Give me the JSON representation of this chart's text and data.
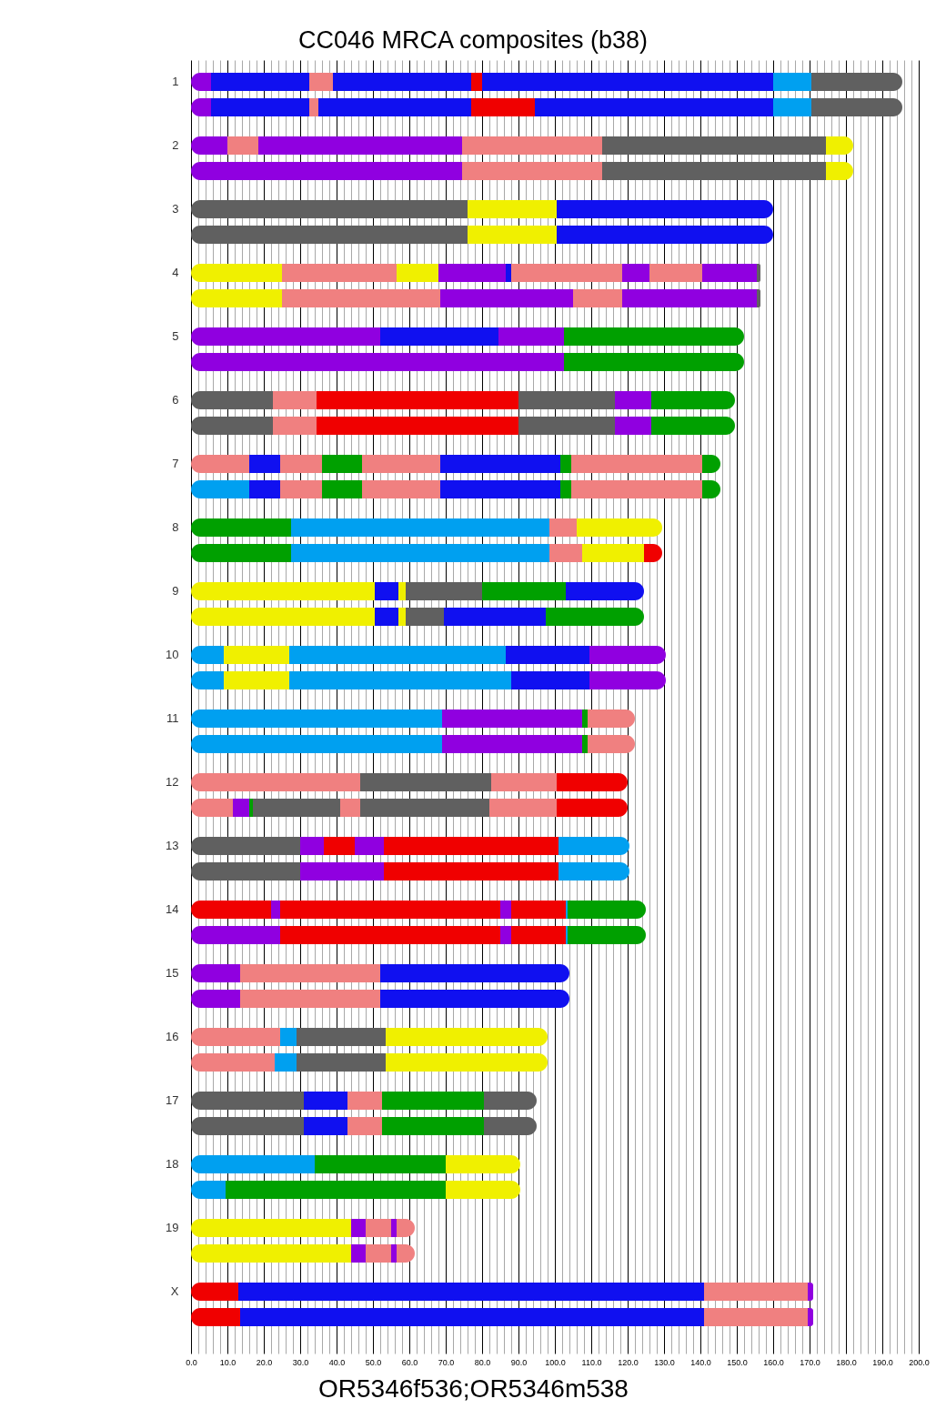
{
  "chart_data": {
    "type": "bar",
    "orientation": "horizontal",
    "stacked": true,
    "title": "CC046 MRCA composites (b38)",
    "xlabel": "OR5346f536;OR5346m538",
    "categories": [
      "1",
      null,
      "2",
      null,
      "3",
      null,
      "4",
      null,
      "5",
      null,
      "6",
      null,
      "7",
      null,
      "8",
      null,
      "9",
      null,
      "10",
      null,
      "11",
      null,
      "12",
      null,
      "13",
      null,
      "14",
      null,
      "15",
      null,
      "16",
      null,
      "17",
      null,
      "18",
      null,
      "19",
      null,
      "X",
      null
    ],
    "xlim": [
      0,
      200
    ],
    "xticks": [
      {
        "value": 0,
        "label": "0.0"
      },
      {
        "value": 2,
        "label": null
      },
      {
        "value": 4,
        "label": null
      },
      {
        "value": 6,
        "label": null
      },
      {
        "value": 8,
        "label": null
      },
      {
        "value": 10,
        "label": "10.0"
      },
      {
        "value": 12,
        "label": null
      },
      {
        "value": 14,
        "label": null
      },
      {
        "value": 16,
        "label": null
      },
      {
        "value": 18,
        "label": null
      },
      {
        "value": 20,
        "label": "20.0"
      },
      {
        "value": 22,
        "label": null
      },
      {
        "value": 24,
        "label": null
      },
      {
        "value": 26,
        "label": null
      },
      {
        "value": 28,
        "label": null
      },
      {
        "value": 30,
        "label": "30.0"
      },
      {
        "value": 32,
        "label": null
      },
      {
        "value": 34,
        "label": null
      },
      {
        "value": 36,
        "label": null
      },
      {
        "value": 38,
        "label": null
      },
      {
        "value": 40,
        "label": "40.0"
      },
      {
        "value": 42,
        "label": null
      },
      {
        "value": 44,
        "label": null
      },
      {
        "value": 46,
        "label": null
      },
      {
        "value": 48,
        "label": null
      },
      {
        "value": 50,
        "label": "50.0"
      },
      {
        "value": 52,
        "label": null
      },
      {
        "value": 54,
        "label": null
      },
      {
        "value": 56,
        "label": null
      },
      {
        "value": 58,
        "label": null
      },
      {
        "value": 60,
        "label": "60.0"
      },
      {
        "value": 62,
        "label": null
      },
      {
        "value": 64,
        "label": null
      },
      {
        "value": 66,
        "label": null
      },
      {
        "value": 68,
        "label": null
      },
      {
        "value": 70,
        "label": "70.0"
      },
      {
        "value": 72,
        "label": null
      },
      {
        "value": 74,
        "label": null
      },
      {
        "value": 76,
        "label": null
      },
      {
        "value": 78,
        "label": null
      },
      {
        "value": 80,
        "label": "80.0"
      },
      {
        "value": 82,
        "label": null
      },
      {
        "value": 84,
        "label": null
      },
      {
        "value": 86,
        "label": null
      },
      {
        "value": 88,
        "label": null
      },
      {
        "value": 90,
        "label": "90.0"
      },
      {
        "value": 92,
        "label": null
      },
      {
        "value": 94,
        "label": null
      },
      {
        "value": 96,
        "label": null
      },
      {
        "value": 98,
        "label": null
      },
      {
        "value": 100,
        "label": "100.0"
      },
      {
        "value": 102,
        "label": null
      },
      {
        "value": 104,
        "label": null
      },
      {
        "value": 106,
        "label": null
      },
      {
        "value": 108,
        "label": null
      },
      {
        "value": 110,
        "label": "110.0"
      },
      {
        "value": 112,
        "label": null
      },
      {
        "value": 114,
        "label": null
      },
      {
        "value": 116,
        "label": null
      },
      {
        "value": 118,
        "label": null
      },
      {
        "value": 120,
        "label": "120.0"
      },
      {
        "value": 122,
        "label": null
      },
      {
        "value": 124,
        "label": null
      },
      {
        "value": 126,
        "label": null
      },
      {
        "value": 128,
        "label": null
      },
      {
        "value": 130,
        "label": "130.0"
      },
      {
        "value": 132,
        "label": null
      },
      {
        "value": 134,
        "label": null
      },
      {
        "value": 136,
        "label": null
      },
      {
        "value": 138,
        "label": null
      },
      {
        "value": 140,
        "label": "140.0"
      },
      {
        "value": 142,
        "label": null
      },
      {
        "value": 144,
        "label": null
      },
      {
        "value": 146,
        "label": null
      },
      {
        "value": 148,
        "label": null
      },
      {
        "value": 150,
        "label": "150.0"
      },
      {
        "value": 152,
        "label": null
      },
      {
        "value": 154,
        "label": null
      },
      {
        "value": 156,
        "label": null
      },
      {
        "value": 158,
        "label": null
      },
      {
        "value": 160,
        "label": "160.0"
      },
      {
        "value": 162,
        "label": null
      },
      {
        "value": 164,
        "label": null
      },
      {
        "value": 166,
        "label": null
      },
      {
        "value": 168,
        "label": null
      },
      {
        "value": 170,
        "label": "170.0"
      },
      {
        "value": 172,
        "label": null
      },
      {
        "value": 174,
        "label": null
      },
      {
        "value": 176,
        "label": null
      },
      {
        "value": 178,
        "label": null
      },
      {
        "value": 180,
        "label": "180.0"
      },
      {
        "value": 182,
        "label": null
      },
      {
        "value": 184,
        "label": null
      },
      {
        "value": 186,
        "label": null
      },
      {
        "value": 188,
        "label": null
      },
      {
        "value": 190,
        "label": "190.0"
      },
      {
        "value": 192,
        "label": null
      },
      {
        "value": 194,
        "label": null
      },
      {
        "value": 196,
        "label": null
      },
      {
        "value": 198,
        "label": null
      },
      {
        "value": 200,
        "label": "200.0"
      }
    ],
    "grid": "x",
    "series": [
      {
        "values": [
          5.5,
          5.5,
          10,
          74.5,
          76,
          76,
          25,
          25,
          52,
          102.5,
          22.5,
          22.5,
          16,
          16,
          27.5,
          27.5,
          50.5,
          50.5,
          9,
          9,
          69,
          69,
          46.5,
          11.5,
          30,
          30,
          22,
          24.5,
          13.5,
          13.5,
          24.5,
          23,
          31,
          31,
          34,
          9.5,
          44,
          44,
          13,
          13.5
        ],
        "colors": [
          "#9000e0",
          "#9000e0",
          "#9000e0",
          "#9000e0",
          "#606060",
          "#606060",
          "#f0f000",
          "#f0f000",
          "#9000e0",
          "#9000e0",
          "#606060",
          "#606060",
          "#f08080",
          "#00a0f0",
          "#00a000",
          "#00a000",
          "#f0f000",
          "#f0f000",
          "#00a0f0",
          "#00a0f0",
          "#00a0f0",
          "#00a0f0",
          "#f08080",
          "#f08080",
          "#606060",
          "#606060",
          "#f00000",
          "#9000e0",
          "#9000e0",
          "#9000e0",
          "#f08080",
          "#f08080",
          "#606060",
          "#606060",
          "#00a0f0",
          "#00a0f0",
          "#f0f000",
          "#f0f000",
          "#f00000",
          "#f00000"
        ]
      },
      {
        "values": [
          27,
          27,
          8.5,
          38.5,
          24.5,
          24.5,
          31.5,
          43.5,
          32.5,
          49.5,
          12,
          12,
          8.5,
          8.5,
          71,
          71,
          6.5,
          6.5,
          18,
          18,
          38.5,
          38.5,
          36,
          4.5,
          6.5,
          23,
          2.5,
          60.5,
          38.5,
          38.5,
          4.5,
          6,
          12,
          12,
          36,
          60.5,
          4,
          4,
          128,
          127.5
        ],
        "colors": [
          "#1010f0",
          "#1010f0",
          "#f08080",
          "#f08080",
          "#f0f000",
          "#f0f000",
          "#f08080",
          "#f08080",
          "#1010f0",
          "#00a000",
          "#f08080",
          "#f08080",
          "#1010f0",
          "#1010f0",
          "#00a0f0",
          "#00a0f0",
          "#1010f0",
          "#1010f0",
          "#f0f000",
          "#f0f000",
          "#9000e0",
          "#9000e0",
          "#606060",
          "#9000e0",
          "#9000e0",
          "#9000e0",
          "#9000e0",
          "#f00000",
          "#f08080",
          "#f08080",
          "#00a0f0",
          "#00a0f0",
          "#1010f0",
          "#1010f0",
          "#00a000",
          "#00a000",
          "#9000e0",
          "#9000e0",
          "#1010f0",
          "#1010f0"
        ]
      },
      {
        "values": [
          6.5,
          2.5,
          56,
          61.5,
          59.5,
          59.5,
          11.5,
          36.5,
          18,
          null,
          55.5,
          55.5,
          11.5,
          11.5,
          7.5,
          9,
          2,
          2,
          59.5,
          61,
          1.5,
          1.5,
          18,
          1,
          8.5,
          48,
          60.5,
          3,
          52,
          52,
          24.5,
          24.5,
          9.5,
          9.5,
          20.5,
          20.5,
          7,
          7,
          28.5,
          28.5
        ],
        "colors": [
          "#f08080",
          "#f08080",
          "#9000e0",
          "#606060",
          "#1010f0",
          "#1010f0",
          "#f0f000",
          "#9000e0",
          "#9000e0",
          null,
          "#f00000",
          "#f00000",
          "#f08080",
          "#f08080",
          "#f08080",
          "#f08080",
          "#f0f000",
          "#f0f000",
          "#00a0f0",
          "#00a0f0",
          "#00a000",
          "#00a000",
          "#f08080",
          "#00a000",
          "#f00000",
          "#f00000",
          "#f00000",
          "#9000e0",
          "#1010f0",
          "#1010f0",
          "#606060",
          "#606060",
          "#f08080",
          "#f08080",
          "#f0f000",
          "#f0f000",
          "#f08080",
          "#f08080",
          "#f08080",
          "#f08080"
        ]
      },
      {
        "values": [
          38,
          42,
          38.5,
          7.5,
          null,
          null,
          18.5,
          13.5,
          49.5,
          null,
          26.5,
          26.5,
          11,
          11,
          23.5,
          17,
          21,
          10.5,
          23,
          21.5,
          13,
          13,
          19.5,
          24,
          8,
          19.5,
          3,
          15,
          null,
          null,
          44.5,
          44.5,
          28,
          28,
          null,
          null,
          1.5,
          1.5,
          1.5,
          1.5
        ],
        "colors": [
          "#1010f0",
          "#1010f0",
          "#f08080",
          "#f0f000",
          null,
          null,
          "#9000e0",
          "#f08080",
          "#00a000",
          null,
          "#606060",
          "#606060",
          "#00a000",
          "#00a000",
          "#f0f000",
          "#f0f000",
          "#606060",
          "#606060",
          "#1010f0",
          "#1010f0",
          "#f08080",
          "#f08080",
          "#f00000",
          "#606060",
          "#9000e0",
          "#00a0f0",
          "#9000e0",
          "#f00000",
          null,
          null,
          "#f0f000",
          "#f0f000",
          "#00a000",
          "#00a000",
          null,
          null,
          "#9000e0",
          "#9000e0",
          "#9000e0",
          "#9000e0"
        ]
      },
      {
        "values": [
          3,
          17.5,
          61.5,
          null,
          null,
          null,
          1.5,
          37,
          null,
          null,
          10,
          10,
          21.5,
          21.5,
          null,
          5,
          23,
          28,
          21,
          21,
          null,
          null,
          null,
          5.5,
          48,
          null,
          15,
          0.5,
          null,
          null,
          null,
          null,
          14.5,
          14.5,
          null,
          null,
          5,
          5,
          null,
          null
        ],
        "colors": [
          "#f00000",
          "#f00000",
          "#606060",
          null,
          null,
          null,
          "#1010f0",
          "#9000e0",
          null,
          null,
          "#9000e0",
          "#9000e0",
          "#f08080",
          "#f08080",
          null,
          "#f00000",
          "#00a000",
          "#1010f0",
          "#9000e0",
          "#9000e0",
          null,
          null,
          null,
          "#f08080",
          "#f00000",
          null,
          "#f00000",
          "#00a0f0",
          null,
          null,
          null,
          null,
          "#606060",
          "#606060",
          null,
          null,
          "#f08080",
          "#f08080",
          null,
          null
        ]
      },
      {
        "values": [
          80,
          65.5,
          7.5,
          null,
          null,
          null,
          30.5,
          1,
          null,
          null,
          23,
          23,
          33,
          33,
          null,
          null,
          21.5,
          27,
          null,
          null,
          null,
          null,
          null,
          35.5,
          19.5,
          null,
          0.5,
          21.5,
          null,
          null,
          null,
          null,
          null,
          null,
          null,
          null,
          null,
          null,
          null,
          null
        ],
        "colors": [
          "#1010f0",
          "#1010f0",
          "#f0f000",
          null,
          null,
          null,
          "#f08080",
          "#606060",
          null,
          null,
          "#00a000",
          "#00a000",
          "#1010f0",
          "#1010f0",
          null,
          null,
          "#1010f0",
          "#00a000",
          null,
          null,
          null,
          null,
          null,
          "#606060",
          "#00a0f0",
          null,
          "#00a0f0",
          "#00a000",
          null,
          null,
          null,
          null,
          null,
          null,
          null,
          null,
          null,
          null,
          null,
          null
        ]
      },
      {
        "values": [
          10.5,
          10.5,
          null,
          null,
          null,
          null,
          7.5,
          null,
          null,
          null,
          null,
          null,
          3,
          3,
          null,
          null,
          null,
          null,
          null,
          null,
          null,
          null,
          null,
          18.5,
          null,
          null,
          21.5,
          null,
          null,
          null,
          null,
          null,
          null,
          null,
          null,
          null,
          null,
          null,
          null,
          null
        ],
        "colors": [
          "#00a0f0",
          "#00a0f0",
          null,
          null,
          null,
          null,
          "#9000e0",
          null,
          null,
          null,
          null,
          null,
          "#00a000",
          "#00a000",
          null,
          null,
          null,
          null,
          null,
          null,
          null,
          null,
          null,
          "#f08080",
          null,
          null,
          "#00a000",
          null,
          null,
          null,
          null,
          null,
          null,
          null,
          null,
          null,
          null,
          null,
          null,
          null
        ]
      },
      {
        "values": [
          25,
          25,
          null,
          null,
          null,
          null,
          14.5,
          null,
          null,
          null,
          null,
          null,
          36,
          36,
          null,
          null,
          null,
          null,
          null,
          null,
          null,
          null,
          null,
          19.5,
          null,
          null,
          null,
          null,
          null,
          null,
          null,
          null,
          null,
          null,
          null,
          null,
          null,
          null,
          null,
          null
        ],
        "colors": [
          "#606060",
          "#606060",
          null,
          null,
          null,
          null,
          "#f08080",
          null,
          null,
          null,
          null,
          null,
          "#f08080",
          "#f08080",
          null,
          null,
          null,
          null,
          null,
          null,
          null,
          null,
          null,
          "#f00000",
          null,
          null,
          null,
          null,
          null,
          null,
          null,
          null,
          null,
          null,
          null,
          null,
          null,
          null,
          null,
          null
        ]
      },
      {
        "values": [
          null,
          null,
          null,
          null,
          null,
          null,
          15,
          null,
          null,
          null,
          null,
          null,
          5,
          5,
          null,
          null,
          null,
          null,
          null,
          null,
          null,
          null,
          null,
          null,
          null,
          null,
          null,
          null,
          null,
          null,
          null,
          null,
          null,
          null,
          null,
          null,
          null,
          null,
          null,
          null
        ],
        "colors": [
          null,
          null,
          null,
          null,
          null,
          null,
          "#9000e0",
          null,
          null,
          null,
          null,
          null,
          "#00a000",
          "#00a000",
          null,
          null,
          null,
          null,
          null,
          null,
          null,
          null,
          null,
          null,
          null,
          null,
          null,
          null,
          null,
          null,
          null,
          null,
          null,
          null,
          null,
          null,
          null,
          null,
          null,
          null
        ]
      },
      {
        "values": [
          null,
          null,
          null,
          null,
          null,
          null,
          1,
          null,
          null,
          null,
          null,
          null,
          null,
          null,
          null,
          null,
          null,
          null,
          null,
          null,
          null,
          null,
          null,
          null,
          null,
          null,
          null,
          null,
          null,
          null,
          null,
          null,
          null,
          null,
          null,
          null,
          null,
          null,
          null,
          null
        ],
        "colors": [
          null,
          null,
          null,
          null,
          null,
          null,
          "#606060",
          null,
          null,
          null,
          null,
          null,
          null,
          null,
          null,
          null,
          null,
          null,
          null,
          null,
          null,
          null,
          null,
          null,
          null,
          null,
          null,
          null,
          null,
          null,
          null,
          null,
          null,
          null,
          null,
          null,
          null,
          null,
          null,
          null
        ]
      }
    ]
  }
}
